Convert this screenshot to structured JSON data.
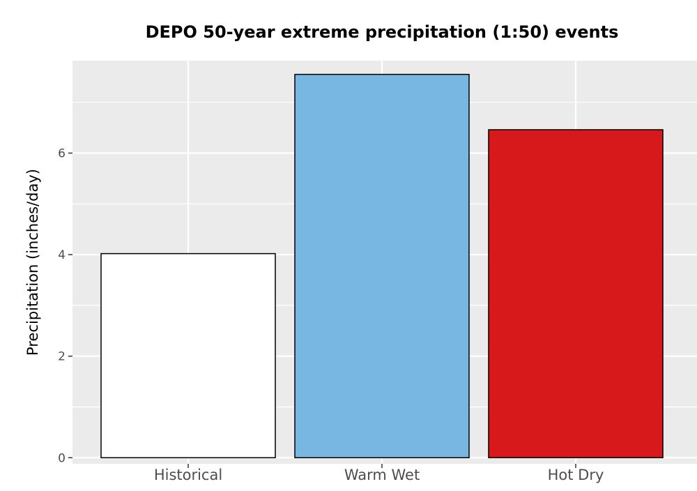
{
  "chart_data": {
    "type": "bar",
    "title": "DEPO 50-year extreme precipitation (1:50) events",
    "xlabel": "",
    "ylabel": "Precipitation (inches/day)",
    "categories": [
      "Historical",
      "Warm Wet",
      "Hot Dry"
    ],
    "values": [
      4.02,
      7.55,
      6.46
    ],
    "bar_colors": [
      "#ffffff",
      "#78b7e1",
      "#d7191c"
    ],
    "bar_outline_color": "#000000",
    "ylim": [
      -0.12,
      7.82
    ],
    "yticks": [
      0,
      2,
      4,
      6
    ],
    "ytick_labels": [
      "0",
      "2",
      "4",
      "6"
    ],
    "grid": true,
    "panel_background": "#ebebeb",
    "grid_color": "#ffffff",
    "legend": "none"
  }
}
